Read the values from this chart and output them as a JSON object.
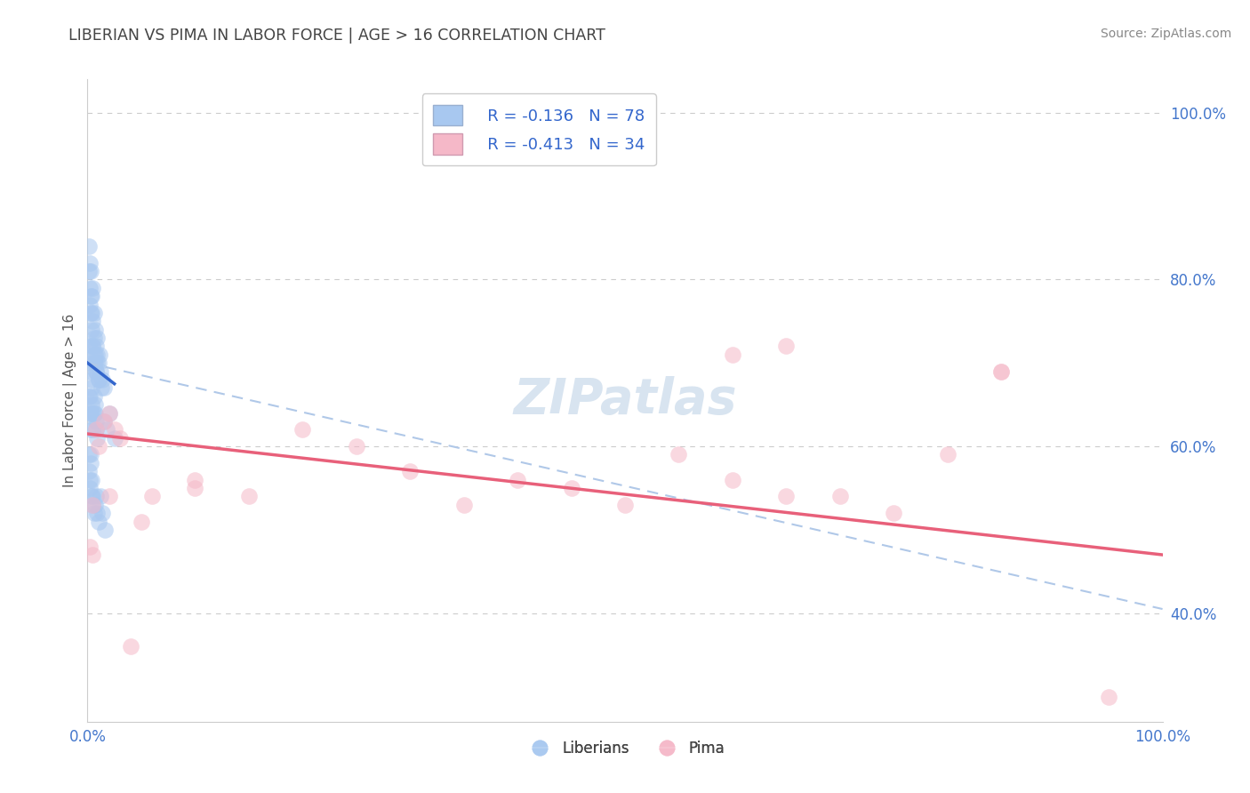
{
  "title": "LIBERIAN VS PIMA IN LABOR FORCE | AGE > 16 CORRELATION CHART",
  "source": "Source: ZipAtlas.com",
  "ylabel_label": "In Labor Force | Age > 16",
  "blue_color": "#a8c8f0",
  "pink_color": "#f5b8c8",
  "blue_line_color": "#3366cc",
  "pink_line_color": "#e8607a",
  "dashed_line_color": "#b0c8e8",
  "axis_color": "#cccccc",
  "grid_color": "#cccccc",
  "title_color": "#444444",
  "source_color": "#888888",
  "tick_color": "#4477cc",
  "ylabel_color": "#555555",
  "watermark_color": "#d8e4f0",
  "legend_text_color": "#333333",
  "legend_value_color": "#3366cc",
  "blue_x": [
    0.001,
    0.001,
    0.002,
    0.002,
    0.002,
    0.003,
    0.003,
    0.003,
    0.004,
    0.004,
    0.004,
    0.005,
    0.005,
    0.005,
    0.006,
    0.006,
    0.006,
    0.007,
    0.007,
    0.008,
    0.008,
    0.009,
    0.009,
    0.01,
    0.01,
    0.011,
    0.012,
    0.013,
    0.014,
    0.015,
    0.001,
    0.002,
    0.003,
    0.004,
    0.005,
    0.006,
    0.007,
    0.008,
    0.009,
    0.01,
    0.001,
    0.002,
    0.002,
    0.003,
    0.003,
    0.004,
    0.004,
    0.005,
    0.005,
    0.006,
    0.006,
    0.007,
    0.007,
    0.008,
    0.008,
    0.009,
    0.015,
    0.018,
    0.02,
    0.025,
    0.001,
    0.001,
    0.002,
    0.002,
    0.003,
    0.003,
    0.004,
    0.004,
    0.005,
    0.005,
    0.006,
    0.007,
    0.008,
    0.009,
    0.01,
    0.012,
    0.014,
    0.016
  ],
  "blue_y": [
    0.84,
    0.81,
    0.79,
    0.77,
    0.82,
    0.78,
    0.76,
    0.81,
    0.76,
    0.74,
    0.78,
    0.72,
    0.75,
    0.79,
    0.73,
    0.71,
    0.76,
    0.74,
    0.7,
    0.72,
    0.69,
    0.71,
    0.73,
    0.7,
    0.68,
    0.71,
    0.69,
    0.67,
    0.68,
    0.67,
    0.72,
    0.7,
    0.69,
    0.68,
    0.72,
    0.7,
    0.71,
    0.69,
    0.7,
    0.68,
    0.66,
    0.64,
    0.66,
    0.64,
    0.62,
    0.65,
    0.67,
    0.64,
    0.62,
    0.64,
    0.66,
    0.65,
    0.64,
    0.63,
    0.62,
    0.61,
    0.63,
    0.62,
    0.64,
    0.61,
    0.59,
    0.57,
    0.56,
    0.55,
    0.58,
    0.59,
    0.56,
    0.54,
    0.53,
    0.54,
    0.52,
    0.53,
    0.54,
    0.52,
    0.51,
    0.54,
    0.52,
    0.5
  ],
  "pink_x": [
    0.002,
    0.005,
    0.008,
    0.01,
    0.015,
    0.02,
    0.025,
    0.03,
    0.04,
    0.06,
    0.1,
    0.15,
    0.2,
    0.25,
    0.3,
    0.35,
    0.4,
    0.45,
    0.5,
    0.55,
    0.6,
    0.65,
    0.7,
    0.75,
    0.8,
    0.85,
    0.005,
    0.02,
    0.05,
    0.1,
    0.6,
    0.65,
    0.85,
    0.95
  ],
  "pink_y": [
    0.48,
    0.53,
    0.62,
    0.6,
    0.63,
    0.64,
    0.62,
    0.61,
    0.36,
    0.54,
    0.56,
    0.54,
    0.62,
    0.6,
    0.57,
    0.53,
    0.56,
    0.55,
    0.53,
    0.59,
    0.56,
    0.54,
    0.54,
    0.52,
    0.59,
    0.69,
    0.47,
    0.54,
    0.51,
    0.55,
    0.71,
    0.72,
    0.69,
    0.3
  ],
  "xlim": [
    0.0,
    1.0
  ],
  "ylim": [
    0.27,
    1.04
  ],
  "ytick_vals": [
    0.4,
    0.6,
    0.8,
    1.0
  ],
  "ytick_labels": [
    "40.0%",
    "60.0%",
    "80.0%",
    "100.0%"
  ],
  "xtick_vals": [
    0.0,
    1.0
  ],
  "xtick_labels": [
    "0.0%",
    "100.0%"
  ],
  "blue_trend_x": [
    0.0,
    0.025
  ],
  "blue_trend_y": [
    0.7,
    0.675
  ],
  "dashed_trend_x": [
    0.0,
    1.0
  ],
  "dashed_trend_y": [
    0.7,
    0.405
  ],
  "pink_trend_x": [
    0.0,
    1.0
  ],
  "pink_trend_y": [
    0.615,
    0.47
  ]
}
